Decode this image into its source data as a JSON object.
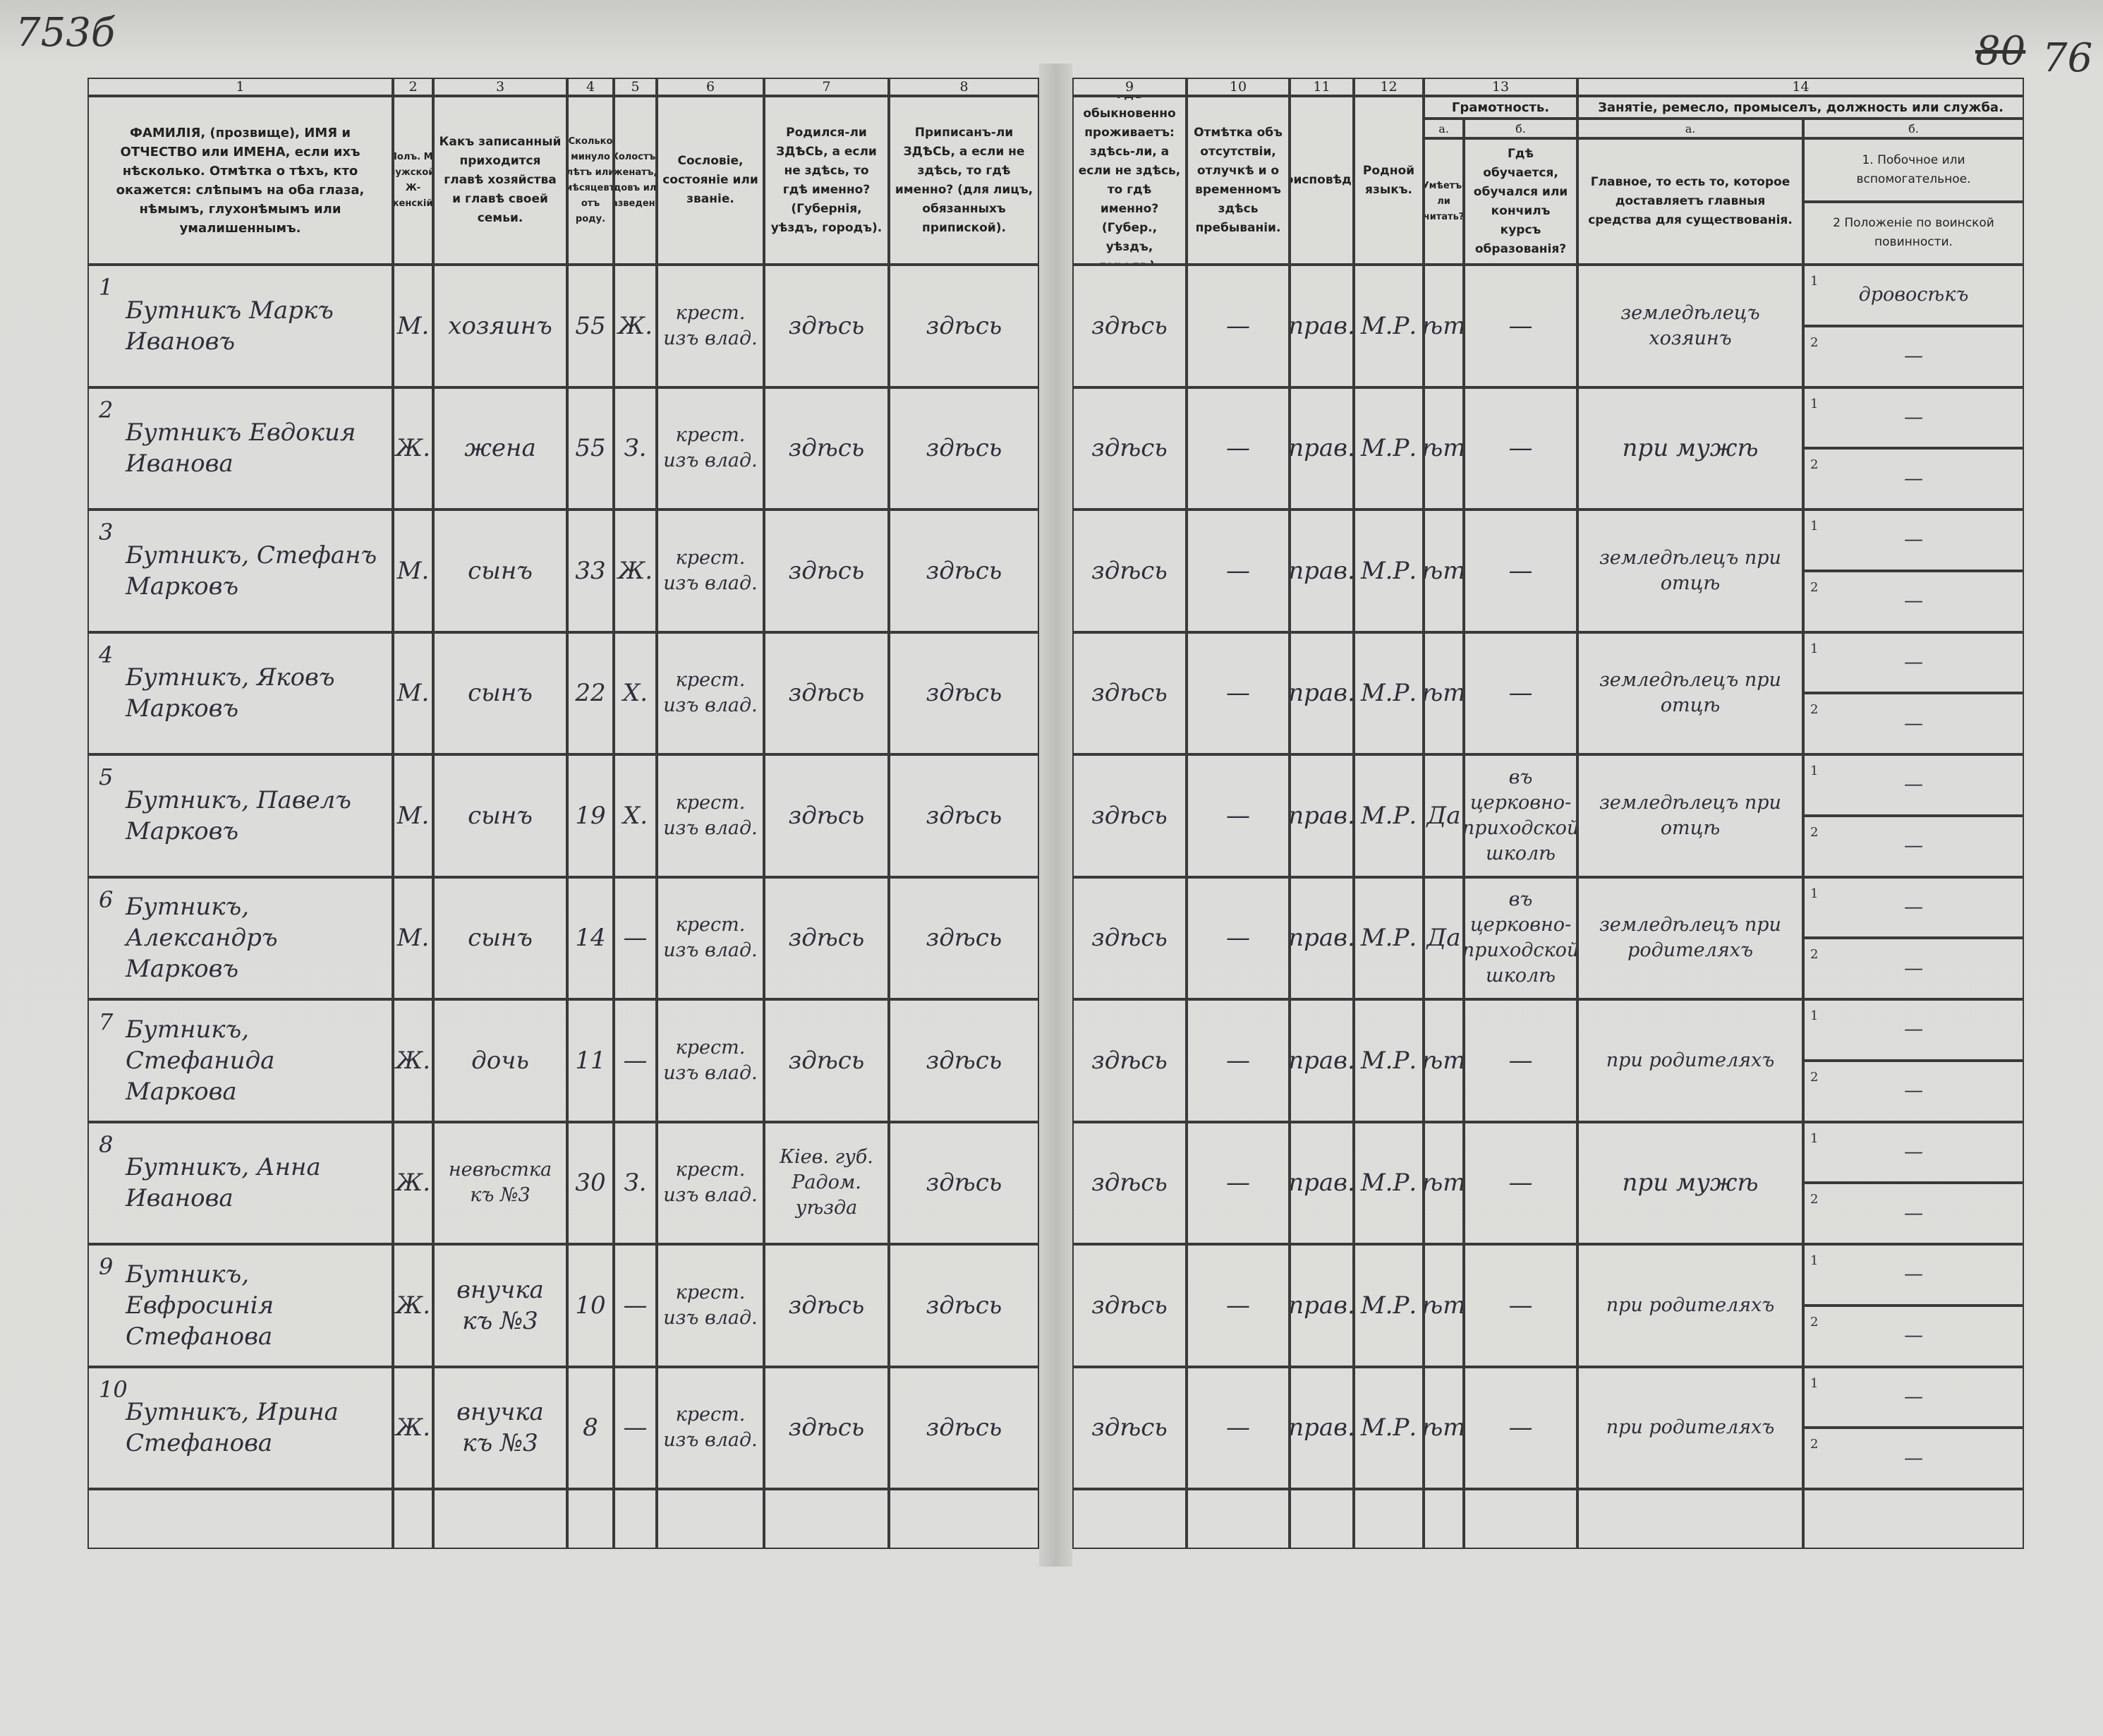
{
  "page_marks": {
    "left": "753б",
    "right_struck": "80",
    "right": "76"
  },
  "header": {
    "columns": [
      {
        "number": "1",
        "text": "ФАМИЛІЯ, (прозвище), ИМЯ и ОТЧЕСТВО или ИМЕНА, если ихъ нѣсколько. Отмѣтка о тѣхъ, кто окажется: слѣпымъ на оба глаза, нѣмымъ, глухонѣмымъ или умалишеннымъ."
      },
      {
        "number": "2",
        "text": "Полъ. М-мужской. Ж-женскій."
      },
      {
        "number": "3",
        "text": "Какъ записанный приходится главѣ хозяйства и главѣ своей семьи."
      },
      {
        "number": "4",
        "text": "Сколько минуло лѣтъ или мѣсяцевъ отъ роду."
      },
      {
        "number": "5",
        "text": "Холостъ, женатъ, вдовъ или разведенъ."
      },
      {
        "number": "6",
        "text": "Сословіе, состояніе или званіе."
      },
      {
        "number": "7",
        "text": "Родился-ли ЗДѢСЬ, а если не здѣсь, то гдѣ именно? (Губернія, уѣздъ, городъ)."
      },
      {
        "number": "8",
        "text": "Приписанъ-ли ЗДѢСЬ, а если не здѣсь, то гдѣ именно? (для лицъ, обязанныхъ припиской)."
      },
      {
        "number": "9",
        "text": "Гдѣ обыкновенно проживаетъ: здѣсь-ли, а если не здѣсь, то гдѣ именно? (Губер., уѣздъ, городъ)."
      },
      {
        "number": "10",
        "text": "Отмѣтка объ отсутствіи, отлучкѣ и о временномъ здѣсь пребываніи."
      },
      {
        "number": "11",
        "text": "Вѣроисповѣданіе."
      },
      {
        "number": "12",
        "text": "Родной языкъ."
      }
    ],
    "groups": [
      {
        "number": "13",
        "title": "Грамотность.",
        "sub": [
          {
            "letter": "а.",
            "lines": [
              "Умѣетъ-ли читать?"
            ]
          },
          {
            "letter": "б.",
            "lines": [
              "Гдѣ обучается, обучался или кончилъ курсъ образованія?"
            ]
          }
        ]
      },
      {
        "number": "14",
        "title": "Занятіе, ремесло, промыселъ, должность или служба.",
        "sub": [
          {
            "letter": "а.",
            "lines": [
              "Главное, то есть то, которое доставляетъ главныя средства для существованія."
            ]
          },
          {
            "letter": "б.",
            "lines": [
              "1. Побочное или вспомогательное.",
              "2 Положеніе по воинской повинности."
            ]
          }
        ]
      }
    ]
  },
  "line_numbers": [
    "1",
    "2"
  ],
  "rows": [
    {
      "number": "1",
      "cells": [
        "Бутникъ Маркъ Ивановъ",
        "М.",
        "хозяинъ",
        "55",
        "Ж.",
        "крест. изъ влад.",
        "здѣсь",
        "здѣсь",
        "здѣсь",
        "—",
        "прав.",
        "М.Р.",
        "нѣтъ",
        "—",
        "земледѣлецъ хозяинъ"
      ],
      "side": "дровосѣкъ",
      "military": "—"
    },
    {
      "number": "2",
      "cells": [
        "Бутникъ Евдокия Иванова",
        "Ж.",
        "жена",
        "55",
        "З.",
        "крест. изъ влад.",
        "здѣсь",
        "здѣсь",
        "здѣсь",
        "—",
        "прав.",
        "М.Р.",
        "нѣтъ",
        "—",
        "при мужѣ"
      ],
      "side": "—",
      "military": "—"
    },
    {
      "number": "3",
      "cells": [
        "Бутникъ, Стефанъ Марковъ",
        "М.",
        "сынъ",
        "33",
        "Ж.",
        "крест. изъ влад.",
        "здѣсь",
        "здѣсь",
        "здѣсь",
        "—",
        "прав.",
        "М.Р.",
        "нѣтъ",
        "—",
        "земледѣлецъ при отцѣ"
      ],
      "side": "—",
      "military": "—"
    },
    {
      "number": "4",
      "cells": [
        "Бутникъ, Яковъ Марковъ",
        "М.",
        "сынъ",
        "22",
        "Х.",
        "крест. изъ влад.",
        "здѣсь",
        "здѣсь",
        "здѣсь",
        "—",
        "прав.",
        "М.Р.",
        "нѣтъ",
        "—",
        "земледѣлецъ при отцѣ"
      ],
      "side": "—",
      "military": "—"
    },
    {
      "number": "5",
      "cells": [
        "Бутникъ, Павелъ Марковъ",
        "М.",
        "сынъ",
        "19",
        "Х.",
        "крест. изъ влад.",
        "здѣсь",
        "здѣсь",
        "здѣсь",
        "—",
        "прав.",
        "М.Р.",
        "Да",
        "въ церковно-приходской школѣ",
        "земледѣлецъ при отцѣ"
      ],
      "side": "—",
      "military": "—"
    },
    {
      "number": "6",
      "cells": [
        "Бутникъ, Александръ Марковъ",
        "М.",
        "сынъ",
        "14",
        "—",
        "крест. изъ влад.",
        "здѣсь",
        "здѣсь",
        "здѣсь",
        "—",
        "прав.",
        "М.Р.",
        "Да",
        "въ церковно-приходской школѣ",
        "земледѣлецъ при родителяхъ"
      ],
      "side": "—",
      "military": "—"
    },
    {
      "number": "7",
      "cells": [
        "Бутникъ, Стефанида Маркова",
        "Ж.",
        "дочь",
        "11",
        "—",
        "крест. изъ влад.",
        "здѣсь",
        "здѣсь",
        "здѣсь",
        "—",
        "прав.",
        "М.Р.",
        "нѣтъ",
        "—",
        "при родителяхъ"
      ],
      "side": "—",
      "military": "—"
    },
    {
      "number": "8",
      "cells": [
        "Бутникъ, Анна Иванова",
        "Ж.",
        "невѣстка къ №3",
        "30",
        "З.",
        "крест. изъ влад.",
        "Кіев. губ. Радом. уѣзда",
        "здѣсь",
        "здѣсь",
        "—",
        "прав.",
        "М.Р.",
        "нѣтъ",
        "—",
        "при мужѣ"
      ],
      "side": "—",
      "military": "—"
    },
    {
      "number": "9",
      "cells": [
        "Бутникъ, Евфросинія Стефанова",
        "Ж.",
        "внучка къ №3",
        "10",
        "—",
        "крест. изъ влад.",
        "здѣсь",
        "здѣсь",
        "здѣсь",
        "—",
        "прав.",
        "М.Р.",
        "нѣтъ",
        "—",
        "при родителяхъ"
      ],
      "side": "—",
      "military": "—"
    },
    {
      "number": "10",
      "cells": [
        "Бутникъ, Ирина Стефанова",
        "Ж.",
        "внучка къ №3",
        "8",
        "—",
        "крест. изъ влад.",
        "здѣсь",
        "здѣсь",
        "здѣсь",
        "—",
        "прав.",
        "М.Р.",
        "нѣтъ",
        "—",
        "при родителяхъ"
      ],
      "side": "—",
      "military": "—"
    }
  ]
}
